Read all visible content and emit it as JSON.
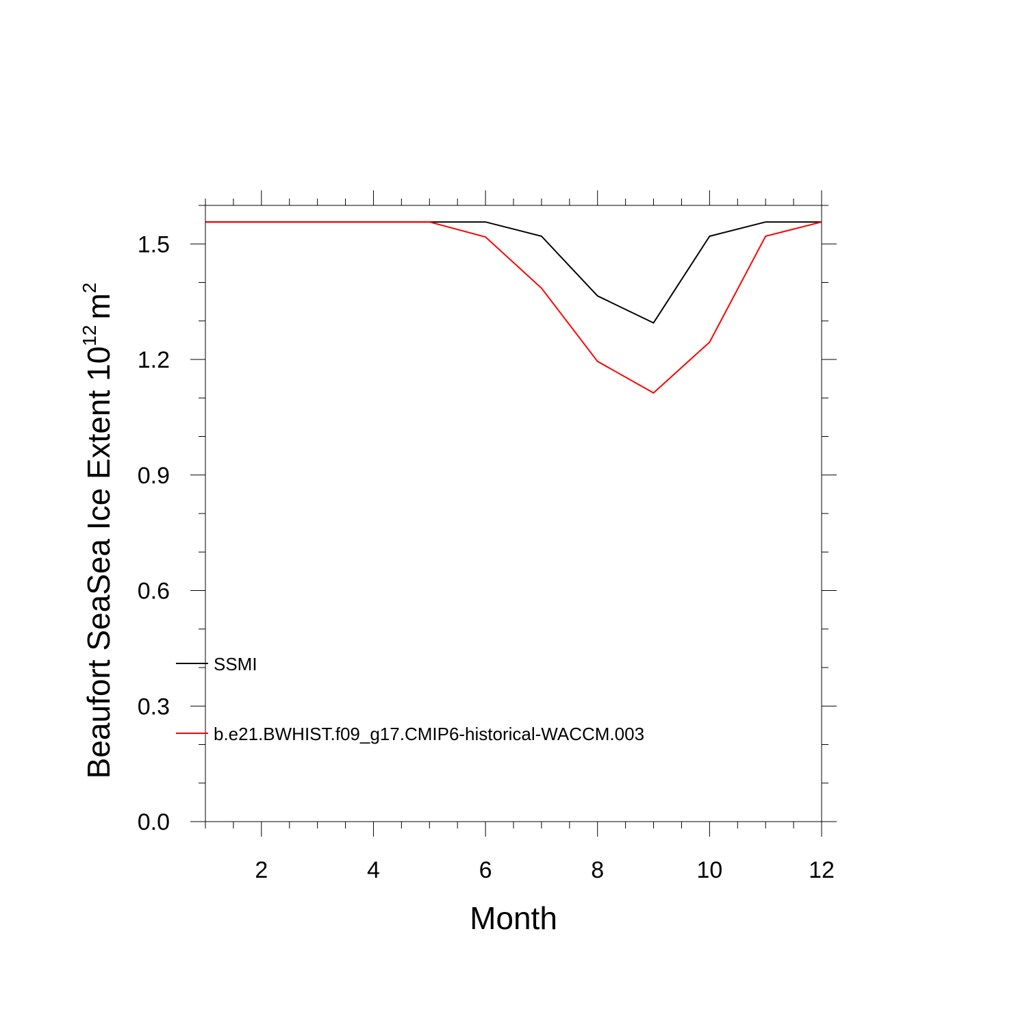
{
  "chart_data": {
    "type": "line",
    "title": "",
    "xlabel": "Month",
    "ylabel": {
      "text": "Beaufort SeaSea Ice Extent 10",
      "exponent": "12",
      "unit": "m",
      "unit_exponent": "2"
    },
    "xlim": [
      1,
      12
    ],
    "ylim": [
      0,
      1.6
    ],
    "xticks": [
      "2",
      "4",
      "6",
      "8",
      "10",
      "12"
    ],
    "yticks": [
      "0.0",
      "0.3",
      "0.6",
      "0.9",
      "1.2",
      "1.5"
    ],
    "grid": false,
    "legend_position": "lower-left",
    "x": [
      1,
      2,
      3,
      4,
      5,
      6,
      7,
      8,
      9,
      10,
      11,
      12
    ],
    "series": [
      {
        "name": "SSMI",
        "color": "#000000",
        "values": [
          1.557,
          1.557,
          1.557,
          1.557,
          1.557,
          1.557,
          1.52,
          1.365,
          1.295,
          1.52,
          1.557,
          1.557
        ]
      },
      {
        "name": "b.e21.BWHIST.f09_g17.CMIP6-historical-WACCM.003",
        "color": "#ff0000",
        "values": [
          1.557,
          1.557,
          1.557,
          1.557,
          1.557,
          1.518,
          1.385,
          1.195,
          1.113,
          1.245,
          1.52,
          1.557
        ]
      }
    ]
  }
}
